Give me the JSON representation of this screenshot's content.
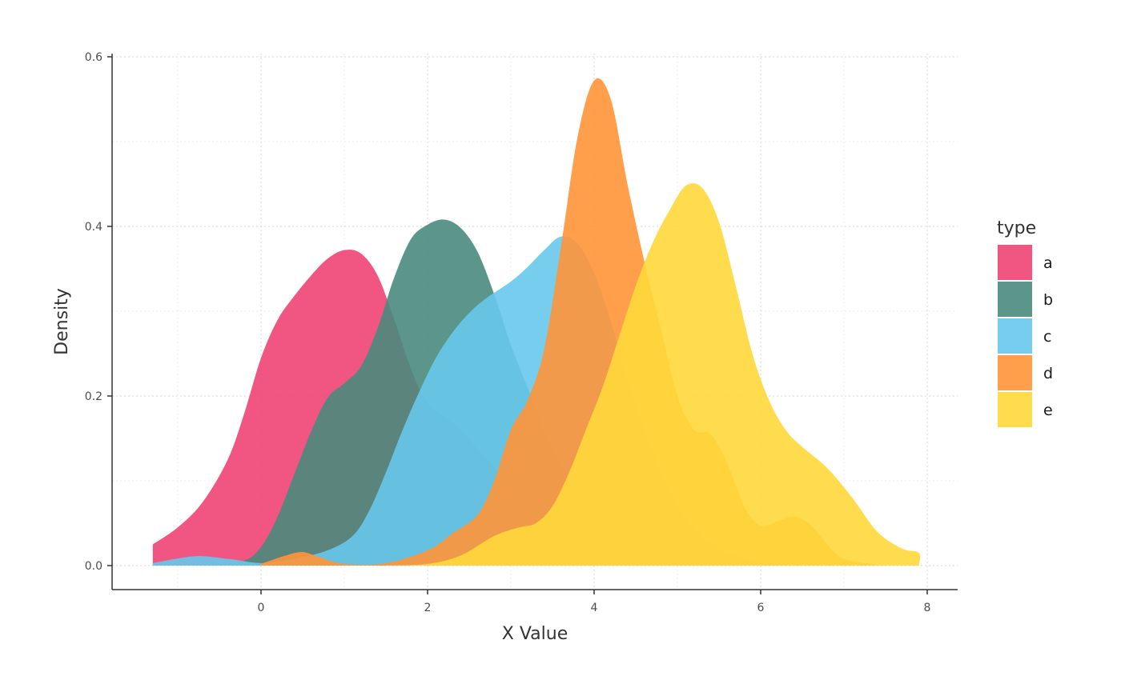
{
  "chart_data": {
    "type": "area",
    "subtype": "density",
    "xlabel": "X Value",
    "ylabel": "Density",
    "xlim": [
      -1.5,
      8.2
    ],
    "ylim": [
      0,
      0.6
    ],
    "x_ticks": [
      0,
      2,
      4,
      6,
      8
    ],
    "x_tick_labels": [
      "0",
      "2",
      "4",
      "6",
      "8"
    ],
    "y_ticks": [
      0,
      0.2,
      0.4,
      0.6
    ],
    "y_tick_labels": [
      "0.0",
      "0.2",
      "0.4",
      "0.6"
    ],
    "grid": true,
    "legend": {
      "title": "type",
      "position": "right"
    },
    "series": [
      {
        "name": "a",
        "color": "#EF4474",
        "points": [
          [
            -1.3,
            0.025
          ],
          [
            -1.0,
            0.045
          ],
          [
            -0.7,
            0.075
          ],
          [
            -0.4,
            0.125
          ],
          [
            -0.2,
            0.18
          ],
          [
            0.0,
            0.245
          ],
          [
            0.2,
            0.29
          ],
          [
            0.4,
            0.318
          ],
          [
            0.6,
            0.342
          ],
          [
            0.8,
            0.362
          ],
          [
            1.0,
            0.372
          ],
          [
            1.2,
            0.368
          ],
          [
            1.4,
            0.342
          ],
          [
            1.6,
            0.29
          ],
          [
            1.8,
            0.232
          ],
          [
            2.0,
            0.192
          ],
          [
            2.3,
            0.168
          ],
          [
            2.6,
            0.138
          ],
          [
            3.0,
            0.095
          ],
          [
            3.4,
            0.058
          ],
          [
            3.8,
            0.03
          ],
          [
            4.2,
            0.012
          ],
          [
            4.6,
            0.004
          ],
          [
            5.0,
            0.001
          ],
          [
            5.4,
            0.0
          ]
        ]
      },
      {
        "name": "b",
        "color": "#4A8A7C",
        "points": [
          [
            -1.3,
            0.001
          ],
          [
            -0.6,
            0.001
          ],
          [
            -0.2,
            0.006
          ],
          [
            0.0,
            0.022
          ],
          [
            0.2,
            0.058
          ],
          [
            0.4,
            0.108
          ],
          [
            0.6,
            0.158
          ],
          [
            0.8,
            0.198
          ],
          [
            1.0,
            0.215
          ],
          [
            1.2,
            0.235
          ],
          [
            1.4,
            0.28
          ],
          [
            1.6,
            0.34
          ],
          [
            1.8,
            0.385
          ],
          [
            2.0,
            0.402
          ],
          [
            2.2,
            0.408
          ],
          [
            2.4,
            0.398
          ],
          [
            2.6,
            0.37
          ],
          [
            2.8,
            0.32
          ],
          [
            3.0,
            0.26
          ],
          [
            3.2,
            0.21
          ],
          [
            3.4,
            0.16
          ],
          [
            3.6,
            0.12
          ],
          [
            3.8,
            0.07
          ],
          [
            4.0,
            0.04
          ],
          [
            4.4,
            0.015
          ],
          [
            4.8,
            0.005
          ],
          [
            5.2,
            0.0
          ]
        ]
      },
      {
        "name": "c",
        "color": "#67C8EC",
        "points": [
          [
            -1.3,
            0.003
          ],
          [
            -0.8,
            0.011
          ],
          [
            -0.4,
            0.008
          ],
          [
            0.0,
            0.003
          ],
          [
            0.4,
            0.008
          ],
          [
            0.8,
            0.018
          ],
          [
            1.1,
            0.035
          ],
          [
            1.3,
            0.065
          ],
          [
            1.5,
            0.11
          ],
          [
            1.7,
            0.16
          ],
          [
            1.9,
            0.205
          ],
          [
            2.1,
            0.245
          ],
          [
            2.3,
            0.275
          ],
          [
            2.5,
            0.298
          ],
          [
            2.7,
            0.315
          ],
          [
            3.0,
            0.335
          ],
          [
            3.2,
            0.352
          ],
          [
            3.4,
            0.372
          ],
          [
            3.6,
            0.388
          ],
          [
            3.8,
            0.38
          ],
          [
            4.0,
            0.345
          ],
          [
            4.2,
            0.288
          ],
          [
            4.4,
            0.22
          ],
          [
            4.6,
            0.16
          ],
          [
            4.8,
            0.11
          ],
          [
            5.0,
            0.07
          ],
          [
            5.3,
            0.035
          ],
          [
            5.6,
            0.015
          ],
          [
            6.0,
            0.004
          ],
          [
            6.4,
            0.0
          ]
        ]
      },
      {
        "name": "d",
        "color": "#FF9538",
        "points": [
          [
            0.0,
            0.002
          ],
          [
            0.3,
            0.012
          ],
          [
            0.5,
            0.016
          ],
          [
            0.7,
            0.01
          ],
          [
            1.0,
            0.002
          ],
          [
            1.5,
            0.003
          ],
          [
            2.0,
            0.018
          ],
          [
            2.3,
            0.038
          ],
          [
            2.6,
            0.06
          ],
          [
            2.8,
            0.1
          ],
          [
            3.0,
            0.16
          ],
          [
            3.2,
            0.195
          ],
          [
            3.4,
            0.255
          ],
          [
            3.6,
            0.375
          ],
          [
            3.8,
            0.505
          ],
          [
            4.0,
            0.572
          ],
          [
            4.2,
            0.55
          ],
          [
            4.4,
            0.45
          ],
          [
            4.6,
            0.36
          ],
          [
            4.8,
            0.28
          ],
          [
            5.0,
            0.2
          ],
          [
            5.2,
            0.16
          ],
          [
            5.4,
            0.155
          ],
          [
            5.6,
            0.12
          ],
          [
            5.8,
            0.07
          ],
          [
            6.0,
            0.047
          ],
          [
            6.2,
            0.052
          ],
          [
            6.4,
            0.058
          ],
          [
            6.6,
            0.048
          ],
          [
            6.8,
            0.025
          ],
          [
            7.0,
            0.008
          ],
          [
            7.4,
            0.001
          ]
        ]
      },
      {
        "name": "e",
        "color": "#FFD83B",
        "points": [
          [
            1.5,
            0.0
          ],
          [
            2.0,
            0.002
          ],
          [
            2.4,
            0.012
          ],
          [
            2.8,
            0.035
          ],
          [
            3.1,
            0.045
          ],
          [
            3.3,
            0.05
          ],
          [
            3.5,
            0.07
          ],
          [
            3.7,
            0.11
          ],
          [
            3.9,
            0.16
          ],
          [
            4.1,
            0.21
          ],
          [
            4.3,
            0.27
          ],
          [
            4.5,
            0.33
          ],
          [
            4.7,
            0.38
          ],
          [
            4.9,
            0.418
          ],
          [
            5.1,
            0.448
          ],
          [
            5.3,
            0.445
          ],
          [
            5.5,
            0.405
          ],
          [
            5.7,
            0.33
          ],
          [
            5.9,
            0.25
          ],
          [
            6.1,
            0.195
          ],
          [
            6.3,
            0.16
          ],
          [
            6.5,
            0.14
          ],
          [
            6.8,
            0.115
          ],
          [
            7.1,
            0.08
          ],
          [
            7.4,
            0.04
          ],
          [
            7.7,
            0.02
          ],
          [
            7.9,
            0.015
          ],
          [
            7.9,
            0.0
          ]
        ]
      }
    ]
  }
}
